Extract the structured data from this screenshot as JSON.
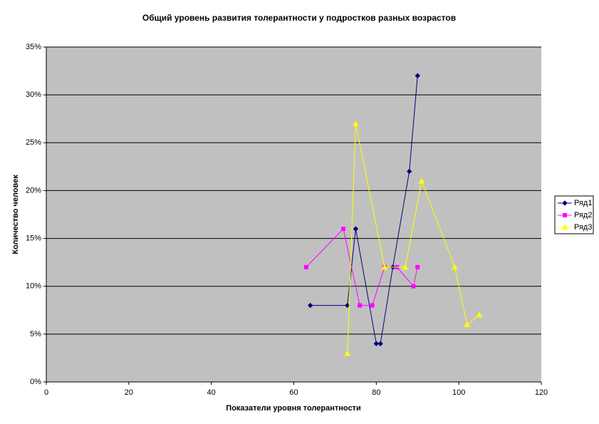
{
  "chart_data": {
    "type": "line",
    "title": "Общий уровень развития толерантности у подростков разных возрастов",
    "x_label": "Показатели уровня толерантности",
    "y_label": "Количество человек",
    "xlim": [
      0,
      120
    ],
    "xticks": [
      0,
      20,
      40,
      60,
      80,
      100,
      120
    ],
    "ylim": [
      0,
      35
    ],
    "yticks": [
      {
        "value": 0,
        "label": "0%"
      },
      {
        "value": 5,
        "label": "5%"
      },
      {
        "value": 10,
        "label": "10%"
      },
      {
        "value": 15,
        "label": "15%"
      },
      {
        "value": 20,
        "label": "20%"
      },
      {
        "value": 25,
        "label": "25%"
      },
      {
        "value": 30,
        "label": "30%"
      },
      {
        "value": 35,
        "label": "35%"
      }
    ],
    "grid": true,
    "legend": "right",
    "series": [
      {
        "name": "Ряд1",
        "color": "#000080",
        "marker": "diamond",
        "x": [
          64,
          73,
          75,
          80,
          81,
          84,
          88,
          90
        ],
        "values": [
          8,
          8,
          16,
          4,
          4,
          12,
          22,
          32
        ]
      },
      {
        "name": "Ряд2",
        "color": "#ff00ff",
        "marker": "square",
        "x": [
          63,
          72,
          76,
          79,
          82,
          85,
          89,
          90
        ],
        "values": [
          12,
          16,
          8,
          8,
          12,
          12,
          10,
          12
        ]
      },
      {
        "name": "Ряд3",
        "color": "#ffff00",
        "marker": "triangle",
        "x": [
          73,
          75,
          82,
          87,
          91,
          99,
          102,
          105
        ],
        "values": [
          3,
          27,
          12,
          12,
          21,
          12,
          6,
          7
        ]
      }
    ]
  }
}
